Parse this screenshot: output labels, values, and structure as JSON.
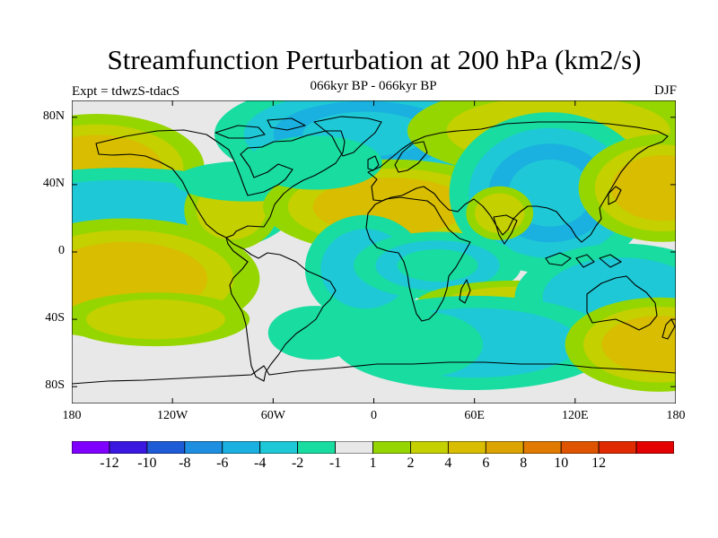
{
  "title": "Streamfunction Perturbation at 200 hPa (km2/s)",
  "left_label": "Expt = tdwzS-tdacS",
  "center_label": "066kyr BP - 066kyr BP",
  "right_label": "DJF",
  "map": {
    "projection": "cylindrical equidistant",
    "lon_range": [
      -180,
      180
    ],
    "lat_range": [
      -90,
      90
    ],
    "lat_ticks": [
      {
        "lat": 80,
        "label": "80N"
      },
      {
        "lat": 40,
        "label": "40N"
      },
      {
        "lat": 0,
        "label": "0"
      },
      {
        "lat": -40,
        "label": "40S"
      },
      {
        "lat": -80,
        "label": "80S"
      }
    ],
    "lon_ticks": [
      {
        "lon": -180,
        "label": "180"
      },
      {
        "lon": -120,
        "label": "120W"
      },
      {
        "lon": -60,
        "label": "60W"
      },
      {
        "lon": 0,
        "label": "0"
      },
      {
        "lon": 60,
        "label": "60E"
      },
      {
        "lon": 120,
        "label": "120E"
      },
      {
        "lon": 180,
        "label": "180"
      }
    ],
    "background_color": "#e8e8e8",
    "anomalies": [
      {
        "lon": -165,
        "lat": 50,
        "rlon": 32,
        "rlat": 16,
        "value": 4
      },
      {
        "lon": -150,
        "lat": 22,
        "rlon": 50,
        "rlat": 14,
        "value": -3
      },
      {
        "lon": -148,
        "lat": -16,
        "rlon": 40,
        "rlat": 18,
        "value": 5
      },
      {
        "lon": -130,
        "lat": -40,
        "rlon": 28,
        "rlat": 8,
        "value": 2
      },
      {
        "lon": -35,
        "lat": -48,
        "rlon": 14,
        "rlat": 8,
        "value": -1.5
      },
      {
        "lon": -85,
        "lat": 25,
        "rlon": 14,
        "rlat": 12,
        "value": 2
      },
      {
        "lon": -75,
        "lat": 42,
        "rlon": 22,
        "rlat": 6,
        "value": -1.5
      },
      {
        "lon": -5,
        "lat": 70,
        "rlon": 45,
        "rlat": 16,
        "value": -4
      },
      {
        "lon": 10,
        "lat": 27,
        "rlon": 38,
        "rlat": 14,
        "value": 4
      },
      {
        "lon": 110,
        "lat": 72,
        "rlon": 45,
        "rlat": 14,
        "value": 3
      },
      {
        "lon": 105,
        "lat": 35,
        "rlon": 30,
        "rlat": 24,
        "value": -4
      },
      {
        "lon": 172,
        "lat": 38,
        "rlon": 25,
        "rlat": 16,
        "value": 4
      },
      {
        "lon": 75,
        "lat": 23,
        "rlon": 10,
        "rlat": 8,
        "value": 2
      },
      {
        "lon": -5,
        "lat": -10,
        "rlon": 18,
        "rlat": 16,
        "value": -3
      },
      {
        "lon": 38,
        "lat": -8,
        "rlon": 25,
        "rlat": 10,
        "value": -2
      },
      {
        "lon": 85,
        "lat": -31,
        "rlon": 30,
        "rlat": 7,
        "value": 2
      },
      {
        "lon": 148,
        "lat": -27,
        "rlon": 32,
        "rlat": 16,
        "value": -3
      },
      {
        "lon": 60,
        "lat": -54,
        "rlon": 42,
        "rlat": 14,
        "value": -3
      },
      {
        "lon": 170,
        "lat": -55,
        "rlon": 28,
        "rlat": 14,
        "value": 4
      },
      {
        "lon": -35,
        "lat": 53,
        "rlon": 20,
        "rlat": 8,
        "value": -1.5
      },
      {
        "lon": 25,
        "lat": -55,
        "rlon": 20,
        "rlat": 10,
        "value": -1.5
      }
    ]
  },
  "colorbar": {
    "colors": [
      "#7f00ff",
      "#3b18e0",
      "#1e5bd6",
      "#1e8fe0",
      "#1ab0df",
      "#1ec8d6",
      "#19dca0",
      "#e8e8e8",
      "#96d600",
      "#c4d000",
      "#d8bd00",
      "#dca400",
      "#e07a00",
      "#de5400",
      "#e02a00",
      "#e40000"
    ],
    "labels": [
      "-12",
      "-10",
      "-8",
      "-6",
      "-4",
      "-2",
      "-1",
      "1",
      "2",
      "4",
      "6",
      "8",
      "10",
      "12"
    ]
  }
}
